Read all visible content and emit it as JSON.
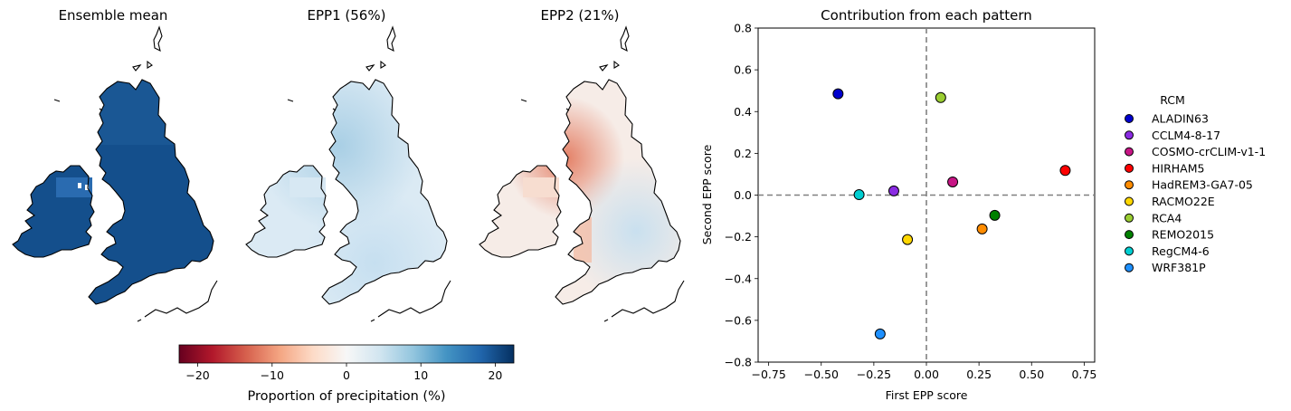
{
  "maps": {
    "panels": [
      {
        "title": "Ensemble mean",
        "variant": "mean"
      },
      {
        "title": "EPP1 (56%)",
        "variant": "epp1"
      },
      {
        "title": "EPP2 (21%)",
        "variant": "epp2"
      }
    ],
    "colorbar": {
      "label": "Proportion of precipitation (%)",
      "range": [
        -22.5,
        22.5
      ],
      "ticks": [
        -20,
        -10,
        0,
        10,
        20
      ],
      "tick_labels": [
        "−20",
        "−10",
        "0",
        "10",
        "20"
      ],
      "colormap": "RdBu",
      "colors": [
        "#67001f",
        "#b2182b",
        "#d6604d",
        "#f4a582",
        "#fddbc7",
        "#f7f7f7",
        "#d1e5f0",
        "#92c5de",
        "#4393c3",
        "#2166ac",
        "#053061"
      ]
    }
  },
  "chart_data": {
    "type": "scatter",
    "title": "Contribution from each pattern",
    "xlabel": "First EPP score",
    "ylabel": "Second EPP score",
    "xlim": [
      -0.8,
      0.8
    ],
    "ylim": [
      -0.8,
      0.8
    ],
    "xticks": [
      -0.75,
      -0.5,
      -0.25,
      0.0,
      0.25,
      0.5,
      0.75
    ],
    "xtick_labels": [
      "−0.75",
      "−0.50",
      "−0.25",
      "0.00",
      "0.25",
      "0.50",
      "0.75"
    ],
    "yticks": [
      -0.8,
      -0.6,
      -0.4,
      -0.2,
      0.0,
      0.2,
      0.4,
      0.6,
      0.8
    ],
    "ytick_labels": [
      "−0.8",
      "−0.6",
      "−0.4",
      "−0.2",
      "0.0",
      "0.2",
      "0.4",
      "0.6",
      "0.8"
    ],
    "reference_lines": {
      "x": 0,
      "y": 0,
      "style": "dashed",
      "color": "#808080"
    },
    "grid": false,
    "legend": {
      "title": "RCM",
      "placement": "outside right"
    },
    "points": [
      {
        "name": "ALADIN63",
        "x": -0.42,
        "y": 0.485,
        "color": "#0000cd"
      },
      {
        "name": "CCLM4-8-17",
        "x": -0.155,
        "y": 0.02,
        "color": "#8a2be2"
      },
      {
        "name": "COSMO-crCLIM-v1-1",
        "x": 0.125,
        "y": 0.063,
        "color": "#c71585"
      },
      {
        "name": "HIRHAM5",
        "x": 0.66,
        "y": 0.118,
        "color": "#ff0000"
      },
      {
        "name": "HadREM3-GA7-05",
        "x": 0.265,
        "y": -0.162,
        "color": "#ff8c00"
      },
      {
        "name": "RACMO22E",
        "x": -0.09,
        "y": -0.213,
        "color": "#ffd700"
      },
      {
        "name": "RCA4",
        "x": 0.068,
        "y": 0.467,
        "color": "#9acd32"
      },
      {
        "name": "REMO2015",
        "x": 0.325,
        "y": -0.097,
        "color": "#008000"
      },
      {
        "name": "RegCM4-6",
        "x": -0.32,
        "y": 0.002,
        "color": "#00ced1"
      },
      {
        "name": "WRF381P",
        "x": -0.22,
        "y": -0.665,
        "color": "#1e90ff"
      }
    ]
  }
}
